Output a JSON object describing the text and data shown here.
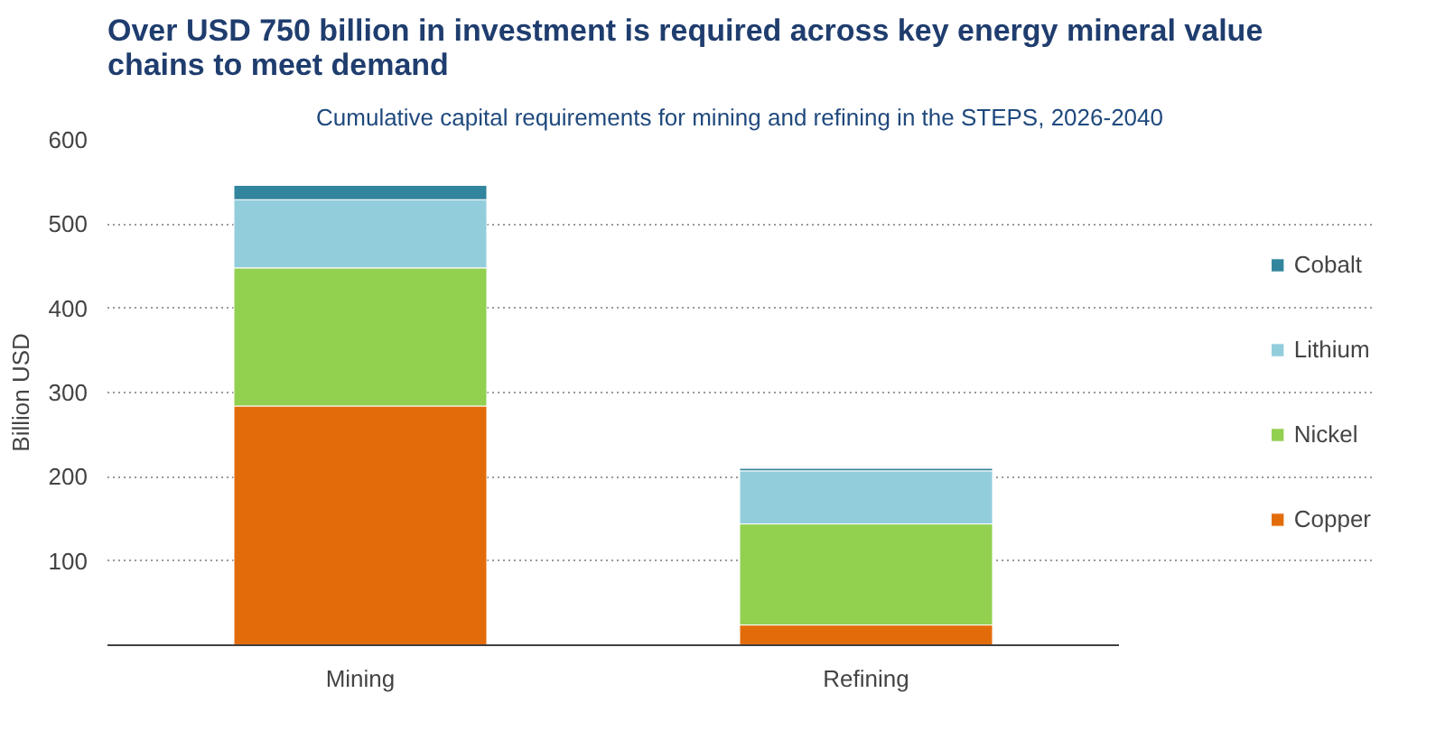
{
  "chart_data": {
    "type": "bar",
    "title": "Over USD 750 billion in investment is required across key energy mineral value chains to meet demand",
    "subtitle": "Cumulative capital requirements for mining and refining in the STEPS, 2026-2040",
    "ylabel": "Billion USD",
    "categories": [
      "Mining",
      "Refining"
    ],
    "stacked": true,
    "series": [
      {
        "name": "Copper",
        "color": "#e36c0a",
        "values": [
          284,
          24
        ]
      },
      {
        "name": "Nickel",
        "color": "#92d050",
        "values": [
          164,
          120
        ]
      },
      {
        "name": "Lithium",
        "color": "#92cddc",
        "values": [
          81,
          63
        ]
      },
      {
        "name": "Cobalt",
        "color": "#31859c",
        "values": [
          17,
          3
        ]
      }
    ],
    "ylim": [
      0,
      600
    ],
    "yticks": [
      {
        "value": 0,
        "label": null
      },
      100,
      200,
      300,
      400,
      500,
      600
    ],
    "grid": "y",
    "legend": "right"
  }
}
